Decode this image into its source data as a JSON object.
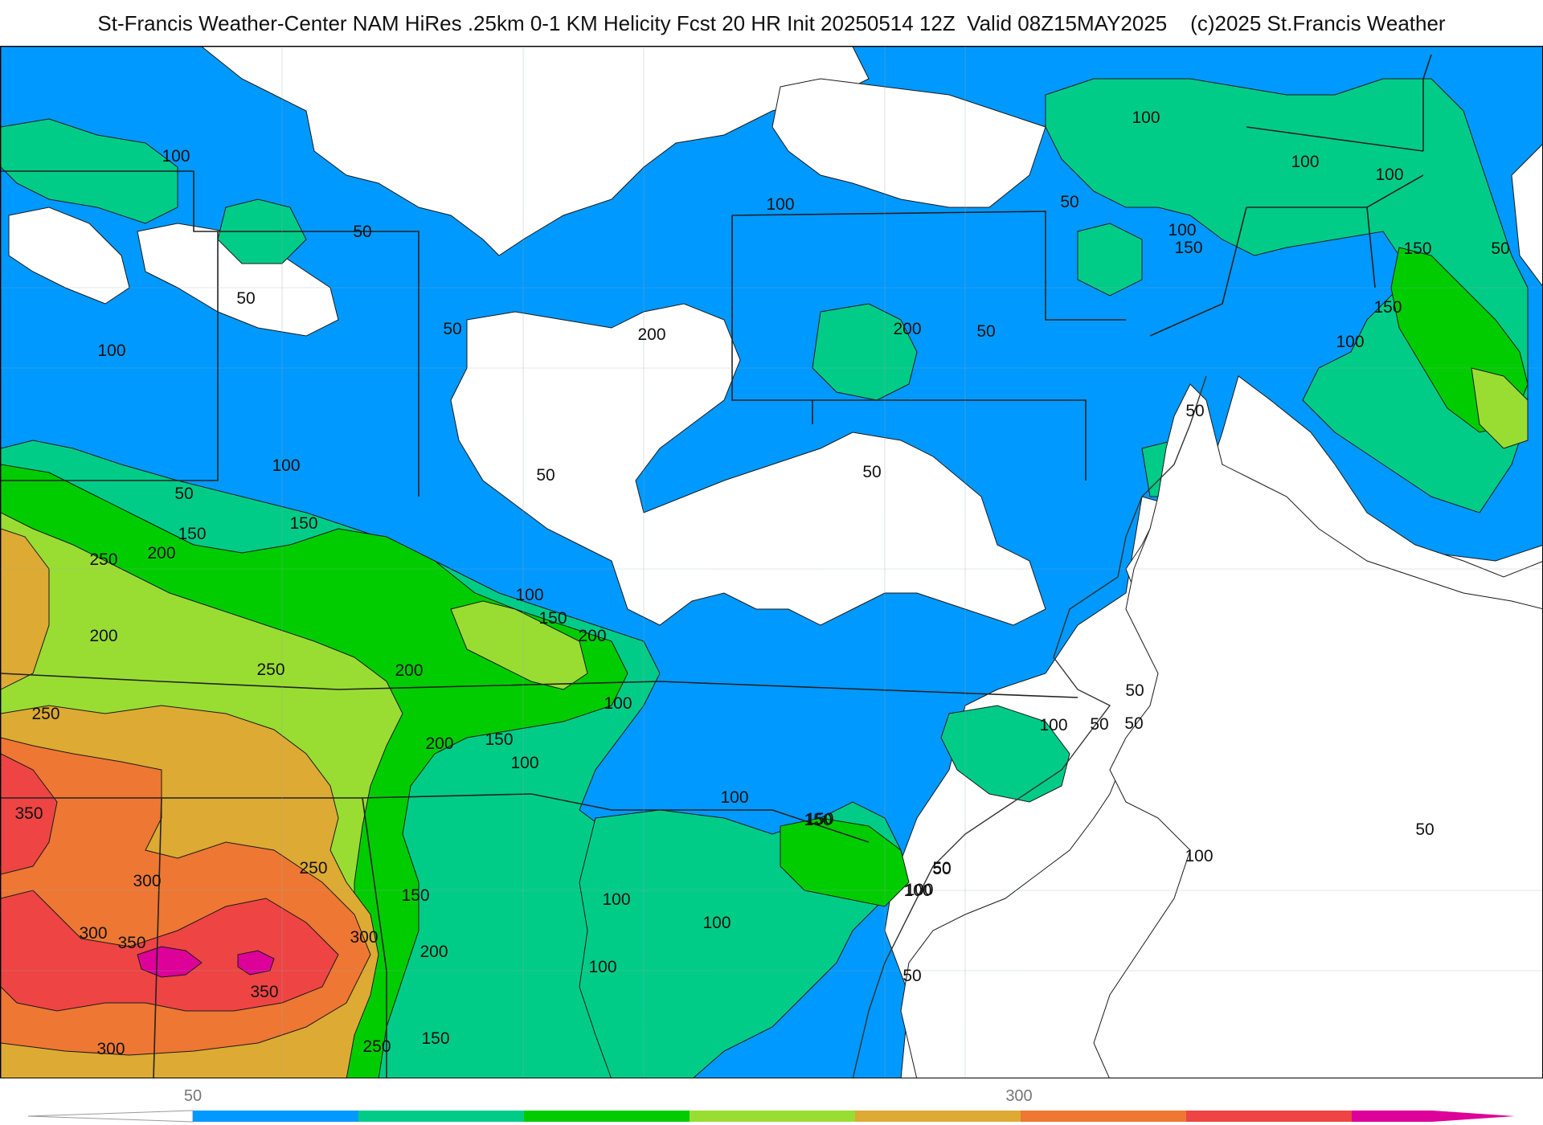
{
  "title": "St-Francis Weather-Center NAM HiRes .25km 0-1 KM Helicity Fcst 20 HR Init 20250514 12Z  Valid 08Z15MAY2025    (c)2025 St.Francis Weather",
  "colors": {
    "band_50": "#0099ff",
    "band_100": "#00cc88",
    "band_150": "#00cc00",
    "band_200": "#99dd33",
    "band_250": "#ddaa33",
    "band_300": "#ee7733",
    "band_350": "#ee4444",
    "band_400": "#dd0099",
    "below": "#ffffff"
  },
  "colorbar": {
    "tick_labels": [
      "50",
      "300"
    ],
    "bands": [
      "band_50",
      "band_100",
      "band_150",
      "band_200",
      "band_250",
      "band_300",
      "band_350",
      "band_400"
    ]
  },
  "contour_labels": [
    "100",
    "50",
    "50",
    "100",
    "50",
    "100",
    "50",
    "50",
    "100",
    "50",
    "100",
    "100",
    "100",
    "150",
    "100",
    "150",
    "50",
    "150",
    "100",
    "150",
    "200",
    "150",
    "250",
    "200",
    "100",
    "150",
    "200",
    "200",
    "50",
    "50",
    "50",
    "200",
    "200",
    "250",
    "250",
    "200",
    "150",
    "100",
    "100",
    "100",
    "50",
    "100",
    "50",
    "350",
    "100",
    "150",
    "250",
    "300",
    "300",
    "150",
    "350",
    "300",
    "200",
    "350",
    "100",
    "50",
    "150",
    "100",
    "300",
    "250",
    "250",
    "50",
    "50",
    "100",
    "100",
    "50",
    "150",
    "100",
    "50"
  ]
}
